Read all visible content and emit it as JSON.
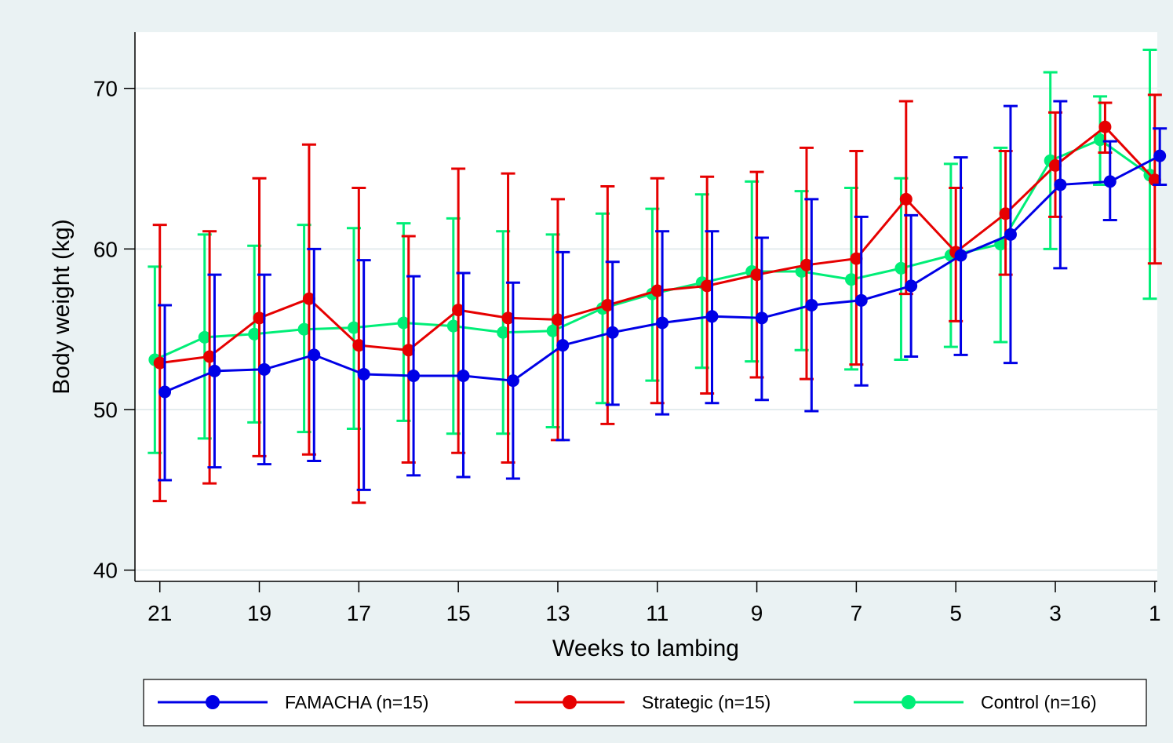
{
  "chart_data": {
    "type": "line",
    "title": "",
    "xlabel": "Weeks to lambing",
    "ylabel": "Body weight (kg)",
    "x": [
      21,
      20,
      19,
      18,
      17,
      16,
      15,
      14,
      13,
      12,
      11,
      10,
      9,
      8,
      7,
      6,
      5,
      4,
      3,
      2,
      1
    ],
    "xlim": [
      21.5,
      0.95
    ],
    "ylim": [
      39.3,
      73.5
    ],
    "x_ticks": [
      21,
      19,
      17,
      15,
      13,
      11,
      9,
      7,
      5,
      3,
      1
    ],
    "y_ticks": [
      40,
      50,
      60,
      70
    ],
    "grid": "horizontal",
    "legend_position": "bottom",
    "series": [
      {
        "name": "FAMACHA (n=15)",
        "color": "#0000e6",
        "offset": 0.1,
        "values": [
          51.1,
          52.4,
          52.5,
          53.4,
          52.2,
          52.1,
          52.1,
          51.8,
          54.0,
          54.8,
          55.4,
          55.8,
          55.7,
          56.5,
          56.8,
          57.7,
          59.6,
          60.9,
          64.0,
          64.2,
          65.8
        ],
        "lower": [
          45.6,
          46.4,
          46.6,
          46.8,
          45.0,
          45.9,
          45.8,
          45.7,
          48.1,
          50.3,
          49.7,
          50.4,
          50.6,
          49.9,
          51.5,
          53.3,
          53.4,
          52.9,
          58.8,
          61.8,
          64.0
        ],
        "upper": [
          56.5,
          58.4,
          58.4,
          60.0,
          59.3,
          58.3,
          58.5,
          57.9,
          59.8,
          59.2,
          61.1,
          61.1,
          60.7,
          63.1,
          62.0,
          62.1,
          65.7,
          68.9,
          69.2,
          66.7,
          67.5
        ]
      },
      {
        "name": "Strategic (n=15)",
        "color": "#e60000",
        "offset": 0.0,
        "values": [
          52.9,
          53.3,
          55.7,
          56.9,
          54.0,
          53.7,
          56.2,
          55.7,
          55.6,
          56.5,
          57.4,
          57.7,
          58.4,
          59.0,
          59.4,
          63.1,
          59.8,
          62.2,
          65.2,
          67.6,
          64.3
        ],
        "lower": [
          44.3,
          45.4,
          47.1,
          47.2,
          44.2,
          46.7,
          47.3,
          46.7,
          48.1,
          49.1,
          50.4,
          51.0,
          52.0,
          51.9,
          52.8,
          57.2,
          55.5,
          58.4,
          62.0,
          66.0,
          59.1
        ],
        "upper": [
          61.5,
          61.1,
          64.4,
          66.5,
          63.8,
          60.8,
          65.0,
          64.7,
          63.1,
          63.9,
          64.4,
          64.5,
          64.8,
          66.3,
          66.1,
          69.2,
          63.8,
          66.1,
          68.5,
          69.1,
          69.6
        ]
      },
      {
        "name": "Control (n=16)",
        "color": "#00ee77",
        "offset": -0.1,
        "values": [
          53.1,
          54.5,
          54.7,
          55.0,
          55.1,
          55.4,
          55.2,
          54.8,
          54.9,
          56.3,
          57.2,
          57.9,
          58.6,
          58.6,
          58.1,
          58.8,
          59.6,
          60.3,
          65.5,
          66.8,
          64.6
        ],
        "lower": [
          47.3,
          48.2,
          49.2,
          48.6,
          48.8,
          49.3,
          48.5,
          48.5,
          48.9,
          50.4,
          51.8,
          52.6,
          53.0,
          53.7,
          52.5,
          53.1,
          53.9,
          54.2,
          60.0,
          64.0,
          56.9
        ],
        "upper": [
          58.9,
          60.9,
          60.2,
          61.5,
          61.3,
          61.6,
          61.9,
          61.1,
          60.9,
          62.2,
          62.5,
          63.4,
          64.2,
          63.6,
          63.8,
          64.4,
          65.3,
          66.3,
          71.0,
          69.5,
          72.4
        ]
      }
    ]
  }
}
